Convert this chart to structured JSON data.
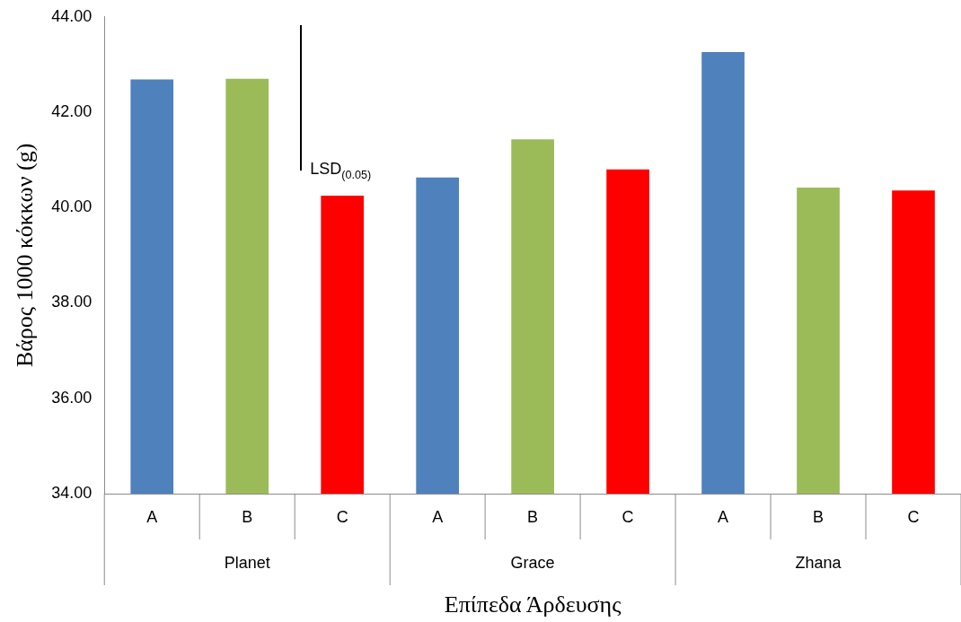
{
  "chart_data": {
    "type": "bar",
    "xlabel": "Επίπεδα Άρδευσης",
    "ylabel": "Βάρος 1000 κόκκων (g)",
    "categories": [
      "Planet",
      "Grace",
      "Zhana"
    ],
    "series": [
      {
        "name": "A",
        "color": "#4f81bd",
        "values": [
          42.69,
          40.63,
          43.26
        ]
      },
      {
        "name": "B",
        "color": "#9bbb59",
        "values": [
          42.7,
          41.43,
          40.42
        ]
      },
      {
        "name": "C",
        "color": "#ff0000",
        "values": [
          40.25,
          40.8,
          40.36
        ]
      }
    ],
    "ylim": [
      34,
      44
    ],
    "yticks": [
      {
        "value": 34,
        "label": "34.00"
      },
      {
        "value": 36,
        "label": "36.00"
      },
      {
        "value": 38,
        "label": "38.00"
      },
      {
        "value": 40,
        "label": "40.00"
      },
      {
        "value": 42,
        "label": "42.00"
      },
      {
        "value": 44,
        "label": "44.00"
      }
    ],
    "annotations": [
      "LSD$_{(0.05)}$"
    ],
    "grid": false,
    "legend": false
  }
}
